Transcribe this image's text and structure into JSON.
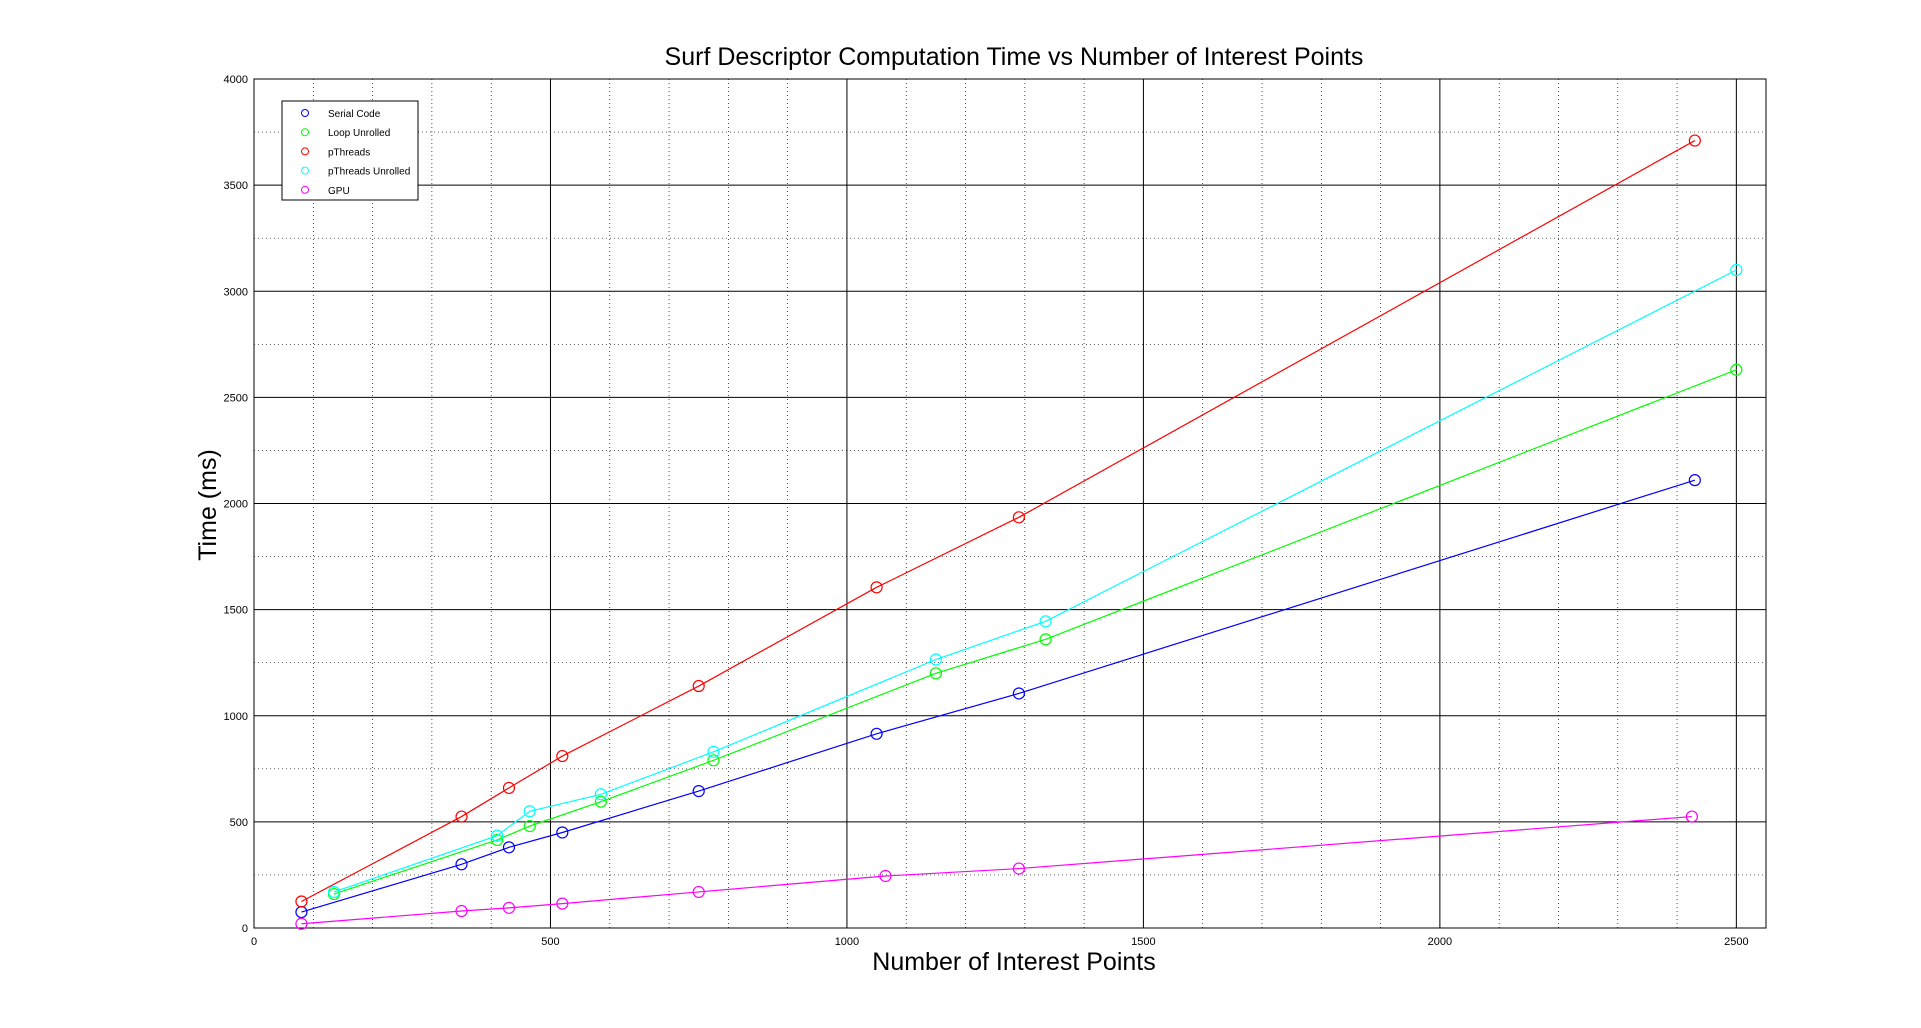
{
  "chart_data": {
    "type": "line",
    "title": "Surf Descriptor Computation Time vs Number of Interest Points",
    "xlabel": "Number of Interest Points",
    "ylabel": "Time (ms)",
    "xlim": [
      0,
      2550
    ],
    "ylim": [
      0,
      4000
    ],
    "xticks": [
      0,
      500,
      1000,
      1500,
      2000,
      2500
    ],
    "yticks": [
      0,
      500,
      1000,
      1500,
      2000,
      2500,
      3000,
      3500,
      4000
    ],
    "grid": true,
    "legend_position": "top-left",
    "series": [
      {
        "name": "Serial Code",
        "color": "#0000ff",
        "x": [
          80,
          350,
          430,
          520,
          750,
          1050,
          1290,
          2430
        ],
        "y": [
          75,
          300,
          380,
          450,
          645,
          915,
          1105,
          2110
        ]
      },
      {
        "name": "Loop Unrolled",
        "color": "#00ff00",
        "x": [
          135,
          410,
          465,
          585,
          775,
          1150,
          1335,
          2500
        ],
        "y": [
          160,
          415,
          480,
          595,
          790,
          1200,
          1360,
          2630
        ]
      },
      {
        "name": "pThreads",
        "color": "#ff0000",
        "x": [
          80,
          350,
          430,
          520,
          750,
          1050,
          1290,
          2430
        ],
        "y": [
          125,
          525,
          660,
          810,
          1140,
          1605,
          1935,
          3710
        ]
      },
      {
        "name": "pThreads Unrolled",
        "color": "#00ffff",
        "x": [
          135,
          410,
          465,
          585,
          775,
          1150,
          1335,
          2500
        ],
        "y": [
          170,
          435,
          550,
          630,
          830,
          1265,
          1445,
          3100
        ]
      },
      {
        "name": "GPU",
        "color": "#ff00ff",
        "x": [
          80,
          350,
          430,
          520,
          750,
          1065,
          1290,
          2425
        ],
        "y": [
          20,
          80,
          95,
          115,
          170,
          245,
          280,
          525
        ]
      }
    ]
  }
}
